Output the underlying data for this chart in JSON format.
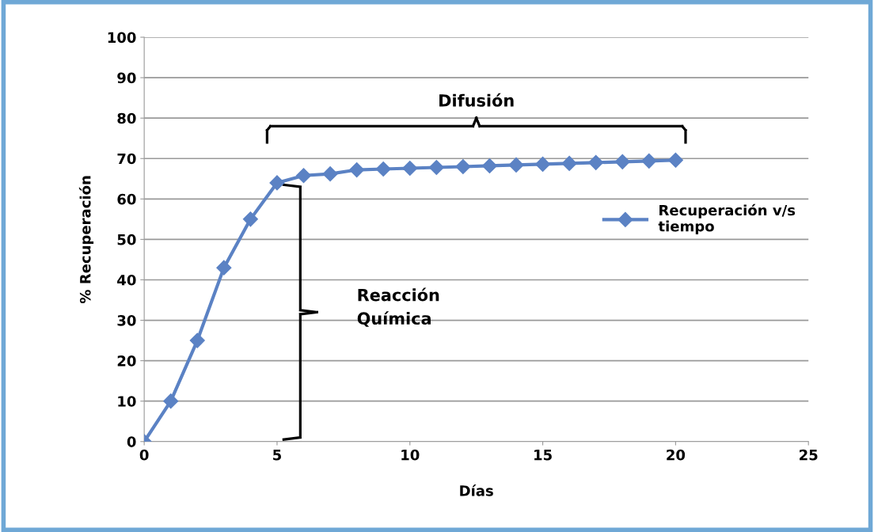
{
  "chart_data": {
    "type": "line",
    "xlabel": "Días",
    "ylabel": "% Recuperación",
    "x": [
      0,
      1,
      2,
      3,
      4,
      5,
      6,
      7,
      8,
      9,
      10,
      11,
      12,
      13,
      14,
      15,
      16,
      17,
      18,
      19,
      20
    ],
    "series": [
      {
        "name": "Recuperación v/s\ntiempo",
        "color": "#5b82c4",
        "values": [
          0,
          10,
          25,
          43,
          55,
          64,
          65.8,
          66.2,
          67.2,
          67.4,
          67.6,
          67.8,
          68,
          68.2,
          68.4,
          68.6,
          68.8,
          69,
          69.2,
          69.4,
          69.6
        ]
      }
    ],
    "xlim": [
      0,
      25
    ],
    "xticks": [
      0,
      5,
      10,
      15,
      20,
      25
    ],
    "ylim": [
      0,
      100
    ],
    "yticks": [
      0,
      10,
      20,
      30,
      40,
      50,
      60,
      70,
      80,
      90,
      100
    ],
    "grid": "y",
    "legend": "right",
    "marker": "diamond",
    "line_style": "solid",
    "annotations": [
      "Difusión",
      "Reacción\nQuímica"
    ]
  }
}
